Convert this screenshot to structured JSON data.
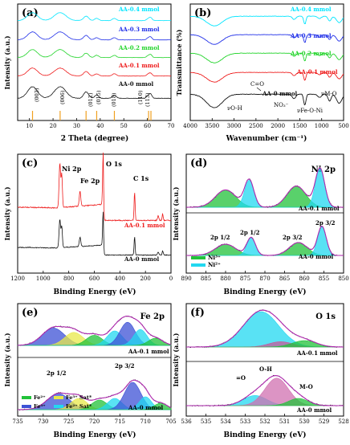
{
  "figure": {
    "panels": [
      {
        "id": "a",
        "letter": "(a)",
        "xlabel": "2 Theta (degree)",
        "ylabel": "Intensity (a.u.)",
        "xticks": [
          "10",
          "20",
          "30",
          "40",
          "50",
          "60",
          "70"
        ],
        "series": [
          {
            "name": "AA-0.4 mmol",
            "color": "#00e5ff"
          },
          {
            "name": "AA-0.3 mmol",
            "color": "#1f2ee8"
          },
          {
            "name": "AA-0.2 mmol",
            "color": "#22d42a"
          },
          {
            "name": "AA-0.1 mmol",
            "color": "#ee1c1c"
          },
          {
            "name": "AA-0 mmol",
            "color": "#111111"
          }
        ],
        "peaks": [
          "(003)",
          "(006)",
          "(012)",
          "(015)",
          "(018)",
          "(110)",
          "(113)"
        ]
      },
      {
        "id": "b",
        "letter": "(b)",
        "xlabel": "Wavenumber (cm⁻¹)",
        "ylabel": "Transmittance (%)",
        "xticks": [
          "4000",
          "3500",
          "3000",
          "2500",
          "2000",
          "1500",
          "1000",
          "500"
        ],
        "series": [
          {
            "name": "AA-0.4 mmol",
            "color": "#00e5ff"
          },
          {
            "name": "AA-0.3 mmol",
            "color": "#1f2ee8"
          },
          {
            "name": "AA-0.2 mmol",
            "color": "#22d42a"
          },
          {
            "name": "AA-0.1 mmol",
            "color": "#ee1c1c"
          },
          {
            "name": "AA-0 mmol",
            "color": "#111111"
          }
        ],
        "annotations": {
          "co": "C=O",
          "oh": "νO-H",
          "no3": "NO₃⁻",
          "fe": "νFe-O-Ni",
          "mo": "νM-O"
        }
      },
      {
        "id": "c",
        "letter": "(c)",
        "xlabel": "Binding Energy (eV)",
        "ylabel": "Intensity (a.u.)",
        "xticks": [
          "1200",
          "1000",
          "800",
          "600",
          "400",
          "200",
          "0"
        ],
        "series": [
          {
            "name": "AA-0.1 mmol",
            "color": "#ee1c1c"
          },
          {
            "name": "AA-0 mmol",
            "color": "#111111"
          }
        ],
        "annotations": {
          "ni": "Ni 2p",
          "fe": "Fe 2p",
          "o": "O 1s",
          "c": "C 1s"
        }
      },
      {
        "id": "d",
        "letter": "(d)",
        "title": "Ni 2p",
        "xlabel": "Binding Energy (eV)",
        "ylabel": "Intensity (a.u.)",
        "xticks": [
          "890",
          "885",
          "880",
          "875",
          "870",
          "865",
          "860",
          "855",
          "850"
        ],
        "sample_top": "AA-0.1 mmol",
        "sample_bottom": "AA-0 mmol",
        "annotations": {
          "p12a": "2p 1/2",
          "p12b": "2p 1/2",
          "p32a": "2p 3/2",
          "p32b": "2p 3/2"
        },
        "legend": [
          {
            "name": "Ni³⁺",
            "color": "#22c23a"
          },
          {
            "name": "Ni²⁺",
            "color": "#22d8f0"
          }
        ]
      },
      {
        "id": "e",
        "letter": "(e)",
        "title": "Fe 2p",
        "xlabel": "Binding Energy (eV)",
        "ylabel": "Intensity (a.u.)",
        "xticks": [
          "735",
          "730",
          "725",
          "720",
          "715",
          "710",
          "705"
        ],
        "sample_top": "AA-0.1 mmol",
        "sample_bottom": "AA-0 mmol",
        "annotations": {
          "p12": "2p 1/2",
          "p32": "2p 3/2"
        },
        "legend": [
          {
            "name": "Fe²⁺",
            "color": "#22c23a"
          },
          {
            "name": "Fe³⁺ Sat*",
            "color": "#e8e84a"
          },
          {
            "name": "Fe³⁺",
            "color": "#3d52d5"
          },
          {
            "name": "Fe²⁺ Sat*",
            "color": "#22d8f0"
          }
        ]
      },
      {
        "id": "f",
        "letter": "(f)",
        "title": "O 1s",
        "xlabel": "Binding Energy (eV)",
        "ylabel": "Intensity (a.u.)",
        "xticks": [
          "536",
          "535",
          "534",
          "533",
          "532",
          "531",
          "530",
          "529",
          "528"
        ],
        "sample_top": "AA-0.1 mmol",
        "sample_bottom": "AA-0 mmol",
        "annotations": {
          "co": "=O",
          "oh": "O-H",
          "mo": "M-O"
        }
      }
    ]
  }
}
